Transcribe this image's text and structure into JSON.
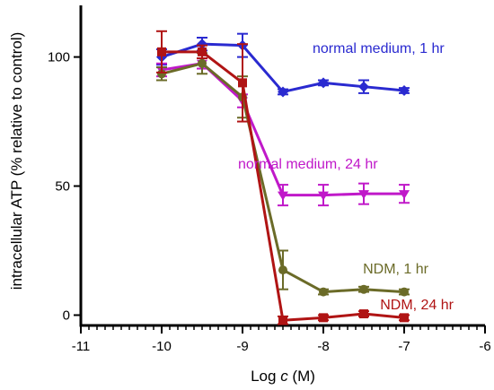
{
  "chart_data": {
    "type": "line",
    "xlabel_prefix": "Log ",
    "xlabel_var": "c",
    "xlabel_suffix": " (M)",
    "ylabel": "intracellular ATP (% relative to control)",
    "xlim": [
      -11,
      -6
    ],
    "ylim": [
      -4,
      120
    ],
    "x_ticks": [
      -11,
      -10,
      -9,
      -8,
      -7,
      -6
    ],
    "x_tick_labels": [
      "-11",
      "-10",
      "-9",
      "-8",
      "-7",
      "-6"
    ],
    "y_ticks": [
      0,
      50,
      100
    ],
    "y_tick_labels": [
      "0",
      "50",
      "100"
    ],
    "x_minor_step": 0.1,
    "grid": false,
    "legend": "inline labels",
    "series": [
      {
        "name": "normal medium, 1 hr",
        "color": "#2a2ad0",
        "marker": "diamond",
        "x": [
          -10,
          -9.5,
          -9,
          -8.5,
          -8,
          -7.5,
          -7
        ],
        "y": [
          100,
          105,
          104.5,
          86.5,
          90,
          88.5,
          87
        ],
        "err": [
          3,
          2.5,
          4.5,
          1,
          1,
          2.5,
          1
        ]
      },
      {
        "name": "normal medium, 24 hr",
        "color": "#c019c9",
        "marker": "triangle-down",
        "x": [
          -10,
          -9.5,
          -9,
          -8.5,
          -8,
          -7.5,
          -7
        ],
        "y": [
          95,
          97.5,
          83,
          46.5,
          46.5,
          47,
          47
        ],
        "err": [
          2.5,
          2,
          2.5,
          4,
          4,
          4,
          3.5
        ]
      },
      {
        "name": "NDM, 1 hr",
        "color": "#6b6b28",
        "marker": "circle",
        "x": [
          -10,
          -9.5,
          -9,
          -8.5,
          -8,
          -7.5,
          -7
        ],
        "y": [
          93.5,
          97.5,
          84.5,
          17.5,
          9,
          10,
          9
        ],
        "err": [
          2.5,
          4,
          8,
          7.5,
          1,
          1,
          1
        ]
      },
      {
        "name": "NDM, 24 hr",
        "color": "#b01414",
        "marker": "square",
        "x": [
          -10,
          -9.5,
          -9,
          -8.5,
          -8,
          -7.5,
          -7
        ],
        "y": [
          102,
          102,
          90,
          -2,
          -1,
          0.5,
          -1
        ],
        "err": [
          8,
          2.5,
          15,
          1.5,
          1,
          1,
          1
        ]
      }
    ]
  }
}
